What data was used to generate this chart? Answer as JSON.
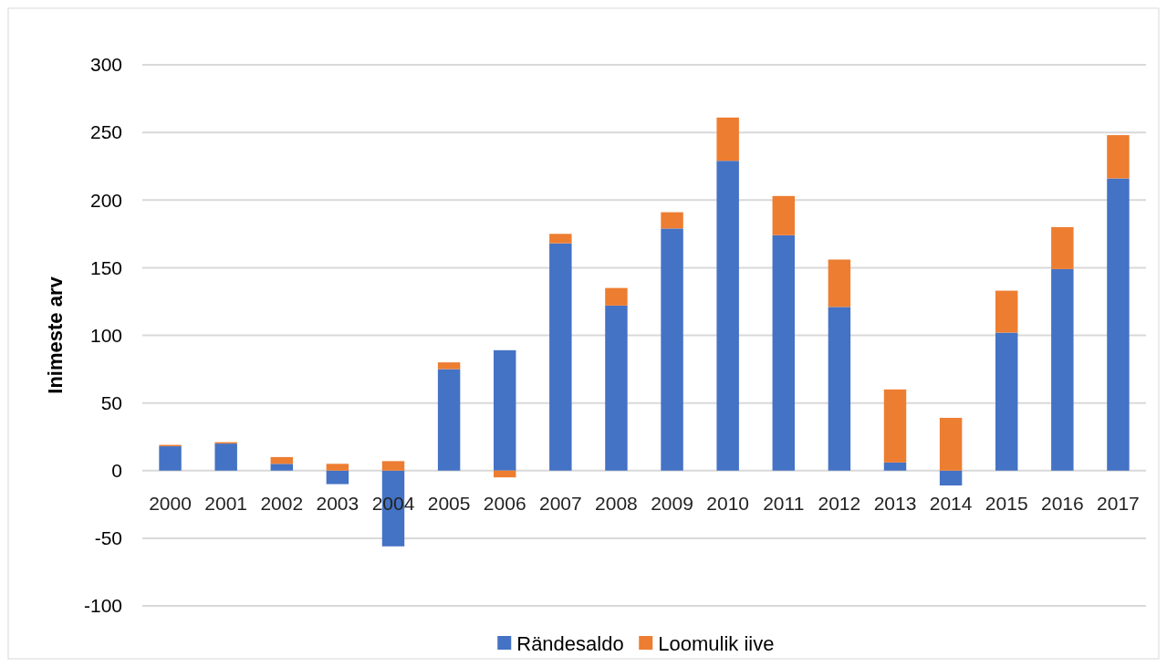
{
  "chart_data": {
    "type": "bar",
    "stacked": true,
    "ylabel": "Inimeste arv",
    "categories": [
      "2000",
      "2001",
      "2002",
      "2003",
      "2004",
      "2005",
      "2006",
      "2007",
      "2008",
      "2009",
      "2010",
      "2011",
      "2012",
      "2013",
      "2014",
      "2015",
      "2016",
      "2017"
    ],
    "series": [
      {
        "name": "Rändesaldo",
        "color": "#4472c4",
        "values": [
          18,
          20,
          5,
          -10,
          -56,
          75,
          89,
          168,
          122,
          179,
          229,
          174,
          121,
          6,
          -11,
          102,
          149,
          216
        ]
      },
      {
        "name": "Loomulik iive",
        "color": "#ed7d31",
        "values": [
          1,
          1,
          5,
          5,
          7,
          5,
          -5,
          7,
          13,
          12,
          32,
          29,
          35,
          54,
          39,
          31,
          31,
          32
        ]
      }
    ],
    "ylim": [
      -100,
      300
    ],
    "yticks": [
      -100,
      -50,
      0,
      50,
      100,
      150,
      200,
      250,
      300
    ],
    "grid": "y",
    "legend": "bottom"
  }
}
